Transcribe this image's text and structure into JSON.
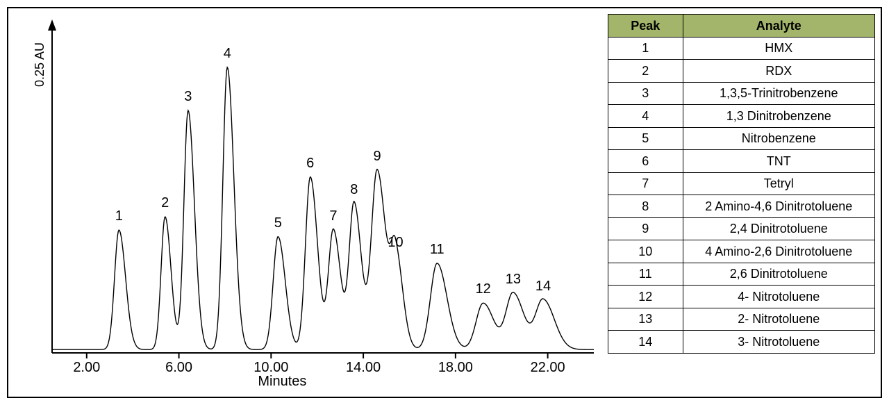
{
  "chromatogram": {
    "type": "line",
    "x_axis_label": "Minutes",
    "y_axis_label": "0.25 AU",
    "x_ticks": [
      2,
      6,
      10,
      14,
      18,
      22
    ],
    "x_range": [
      0.5,
      24
    ],
    "label_fontsize": 20,
    "line_color": "#000000",
    "line_width": 1.4,
    "background_color": "#ffffff",
    "axis_color": "#000000",
    "baseline_y": 0.01,
    "y_max": 1.0,
    "peaks": [
      {
        "n": 1,
        "rt": 3.4,
        "h": 0.36,
        "w": 0.5,
        "label_dy": -8
      },
      {
        "n": 2,
        "rt": 5.4,
        "h": 0.4,
        "w": 0.45,
        "label_dy": -8
      },
      {
        "n": 3,
        "rt": 6.4,
        "h": 0.72,
        "w": 0.48,
        "label_dy": -8
      },
      {
        "n": 4,
        "rt": 8.1,
        "h": 0.85,
        "w": 0.5,
        "label_dy": -8
      },
      {
        "n": 5,
        "rt": 10.3,
        "h": 0.34,
        "w": 0.55,
        "label_dy": -8
      },
      {
        "n": 6,
        "rt": 11.7,
        "h": 0.52,
        "w": 0.55,
        "label_dy": -8
      },
      {
        "n": 7,
        "rt": 12.7,
        "h": 0.36,
        "w": 0.55,
        "label_dy": -8
      },
      {
        "n": 8,
        "rt": 13.6,
        "h": 0.44,
        "w": 0.55,
        "label_dy": -8
      },
      {
        "n": 9,
        "rt": 14.6,
        "h": 0.54,
        "w": 0.65,
        "label_dy": -8
      },
      {
        "n": 10,
        "rt": 15.4,
        "h": 0.28,
        "w": 0.55,
        "label_dy": -8
      },
      {
        "n": 11,
        "rt": 17.2,
        "h": 0.26,
        "w": 0.75,
        "label_dy": -8
      },
      {
        "n": 12,
        "rt": 19.2,
        "h": 0.14,
        "w": 0.8,
        "label_dy": -8
      },
      {
        "n": 13,
        "rt": 20.5,
        "h": 0.17,
        "w": 0.8,
        "label_dy": -8
      },
      {
        "n": 14,
        "rt": 21.8,
        "h": 0.15,
        "w": 0.85,
        "label_dy": -8
      }
    ]
  },
  "table": {
    "header_bg": "#a3b56a",
    "header_color": "#000000",
    "cell_bg": "#ffffff",
    "border_color": "#000000",
    "fontsize": 18,
    "columns": [
      "Peak",
      "Analyte"
    ],
    "rows": [
      [
        "1",
        "HMX"
      ],
      [
        "2",
        "RDX"
      ],
      [
        "3",
        "1,3,5-Trinitrobenzene"
      ],
      [
        "4",
        "1,3 Dinitrobenzene"
      ],
      [
        "5",
        "Nitrobenzene"
      ],
      [
        "6",
        "TNT"
      ],
      [
        "7",
        "Tetryl"
      ],
      [
        "8",
        "2 Amino-4,6 Dinitrotoluene"
      ],
      [
        "9",
        "2,4 Dinitrotoluene"
      ],
      [
        "10",
        "4 Amino-2,6 Dinitrotoluene"
      ],
      [
        "11",
        "2,6 Dinitrotoluene"
      ],
      [
        "12",
        "4- Nitrotoluene"
      ],
      [
        "13",
        "2- Nitrotoluene"
      ],
      [
        "14",
        "3- Nitrotoluene"
      ]
    ]
  }
}
